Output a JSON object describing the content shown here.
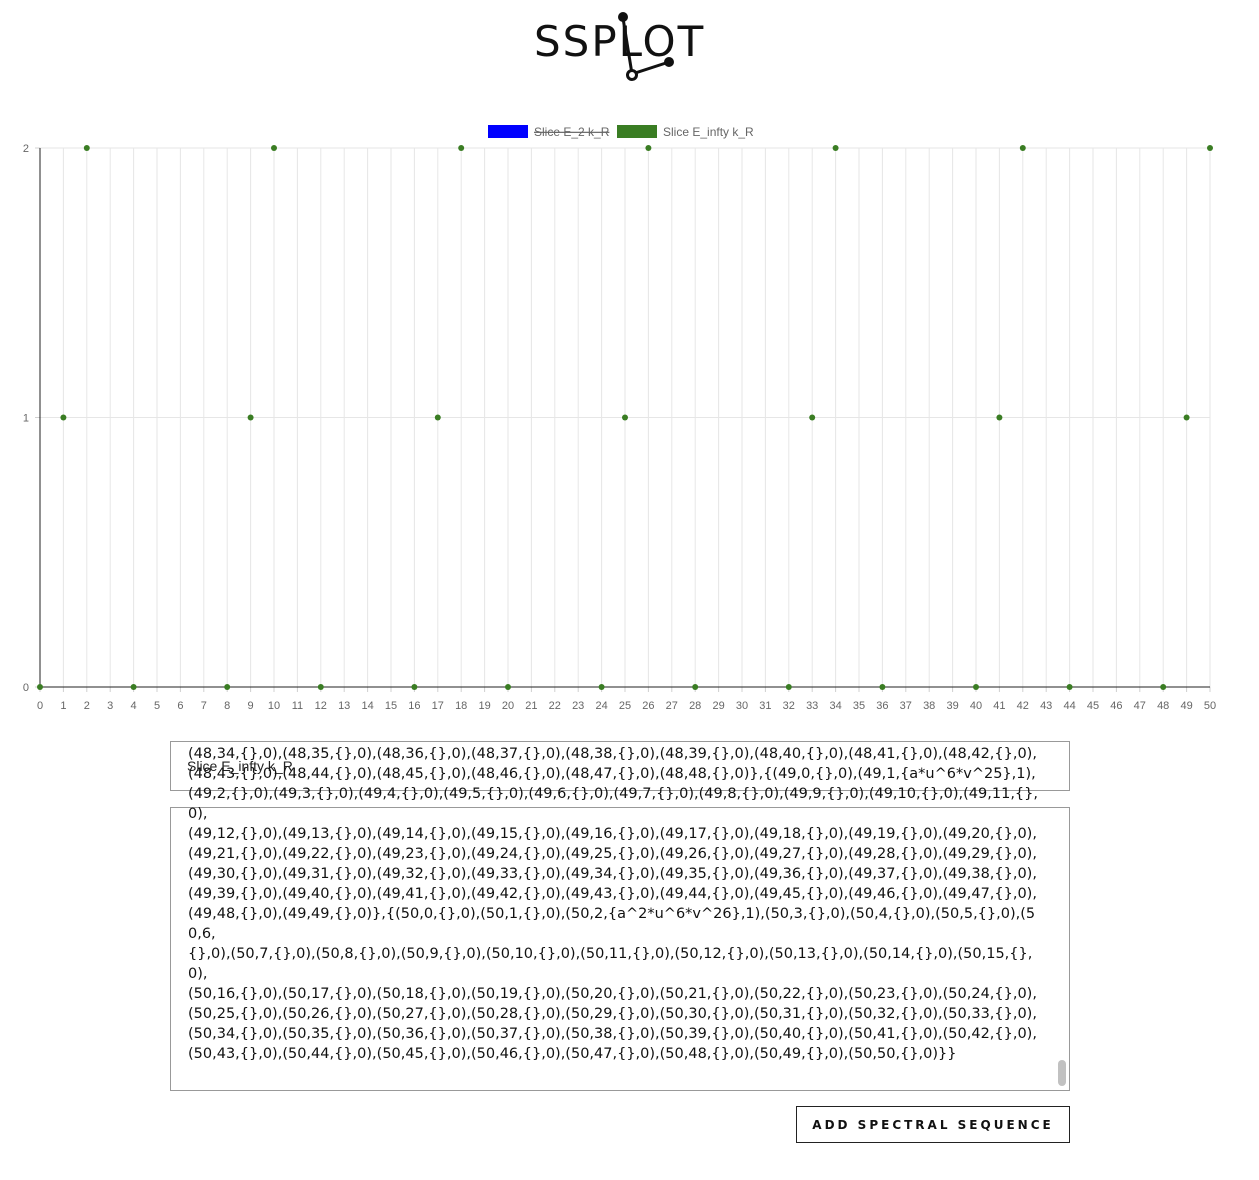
{
  "logo": {
    "text": "SSPLOT"
  },
  "chart_data": {
    "type": "scatter",
    "xlim": [
      0,
      50
    ],
    "ylim": [
      0,
      2
    ],
    "x_ticks": [
      0,
      1,
      2,
      3,
      4,
      5,
      6,
      7,
      8,
      9,
      10,
      11,
      12,
      13,
      14,
      15,
      16,
      17,
      18,
      19,
      20,
      21,
      22,
      23,
      24,
      25,
      26,
      27,
      28,
      29,
      30,
      31,
      32,
      33,
      34,
      35,
      36,
      37,
      38,
      39,
      40,
      41,
      42,
      43,
      44,
      45,
      46,
      47,
      48,
      49,
      50
    ],
    "y_ticks": [
      0,
      1,
      2
    ],
    "grid": true,
    "legend_position": "top",
    "series": [
      {
        "name": "Slice E_2 k_R",
        "color": "#0000ff",
        "hidden": true,
        "points": []
      },
      {
        "name": "Slice E_infty k_R",
        "color": "#3a7d23",
        "hidden": false,
        "points": [
          [
            0,
            0
          ],
          [
            1,
            1
          ],
          [
            2,
            2
          ],
          [
            4,
            0
          ],
          [
            8,
            0
          ],
          [
            9,
            1
          ],
          [
            10,
            2
          ],
          [
            12,
            0
          ],
          [
            16,
            0
          ],
          [
            17,
            1
          ],
          [
            18,
            2
          ],
          [
            20,
            0
          ],
          [
            24,
            0
          ],
          [
            25,
            1
          ],
          [
            26,
            2
          ],
          [
            28,
            0
          ],
          [
            32,
            0
          ],
          [
            33,
            1
          ],
          [
            34,
            2
          ],
          [
            36,
            0
          ],
          [
            40,
            0
          ],
          [
            41,
            1
          ],
          [
            42,
            2
          ],
          [
            44,
            0
          ],
          [
            48,
            0
          ],
          [
            49,
            1
          ],
          [
            50,
            2
          ]
        ]
      }
    ]
  },
  "name_input": {
    "value": "Slice E_infty k_R"
  },
  "data_area": {
    "text": "(48,34,{},0),(48,35,{},0),(48,36,{},0),(48,37,{},0),(48,38,{},0),(48,39,{},0),(48,40,{},0),(48,41,{},0),(48,42,{},0),\n(48,43,{},0),(48,44,{},0),(48,45,{},0),(48,46,{},0),(48,47,{},0),(48,48,{},0)},{(49,0,{},0),(49,1,{a*u^6*v^25},1),\n(49,2,{},0),(49,3,{},0),(49,4,{},0),(49,5,{},0),(49,6,{},0),(49,7,{},0),(49,8,{},0),(49,9,{},0),(49,10,{},0),(49,11,{},0),\n(49,12,{},0),(49,13,{},0),(49,14,{},0),(49,15,{},0),(49,16,{},0),(49,17,{},0),(49,18,{},0),(49,19,{},0),(49,20,{},0),\n(49,21,{},0),(49,22,{},0),(49,23,{},0),(49,24,{},0),(49,25,{},0),(49,26,{},0),(49,27,{},0),(49,28,{},0),(49,29,{},0),\n(49,30,{},0),(49,31,{},0),(49,32,{},0),(49,33,{},0),(49,34,{},0),(49,35,{},0),(49,36,{},0),(49,37,{},0),(49,38,{},0),\n(49,39,{},0),(49,40,{},0),(49,41,{},0),(49,42,{},0),(49,43,{},0),(49,44,{},0),(49,45,{},0),(49,46,{},0),(49,47,{},0),\n(49,48,{},0),(49,49,{},0)},{(50,0,{},0),(50,1,{},0),(50,2,{a^2*u^6*v^26},1),(50,3,{},0),(50,4,{},0),(50,5,{},0),(50,6,\n{},0),(50,7,{},0),(50,8,{},0),(50,9,{},0),(50,10,{},0),(50,11,{},0),(50,12,{},0),(50,13,{},0),(50,14,{},0),(50,15,{},0),\n(50,16,{},0),(50,17,{},0),(50,18,{},0),(50,19,{},0),(50,20,{},0),(50,21,{},0),(50,22,{},0),(50,23,{},0),(50,24,{},0),\n(50,25,{},0),(50,26,{},0),(50,27,{},0),(50,28,{},0),(50,29,{},0),(50,30,{},0),(50,31,{},0),(50,32,{},0),(50,33,{},0),\n(50,34,{},0),(50,35,{},0),(50,36,{},0),(50,37,{},0),(50,38,{},0),(50,39,{},0),(50,40,{},0),(50,41,{},0),(50,42,{},0),\n(50,43,{},0),(50,44,{},0),(50,45,{},0),(50,46,{},0),(50,47,{},0),(50,48,{},0),(50,49,{},0),(50,50,{},0)}}"
  },
  "add_button": {
    "label": "ADD SPECTRAL SEQUENCE"
  }
}
